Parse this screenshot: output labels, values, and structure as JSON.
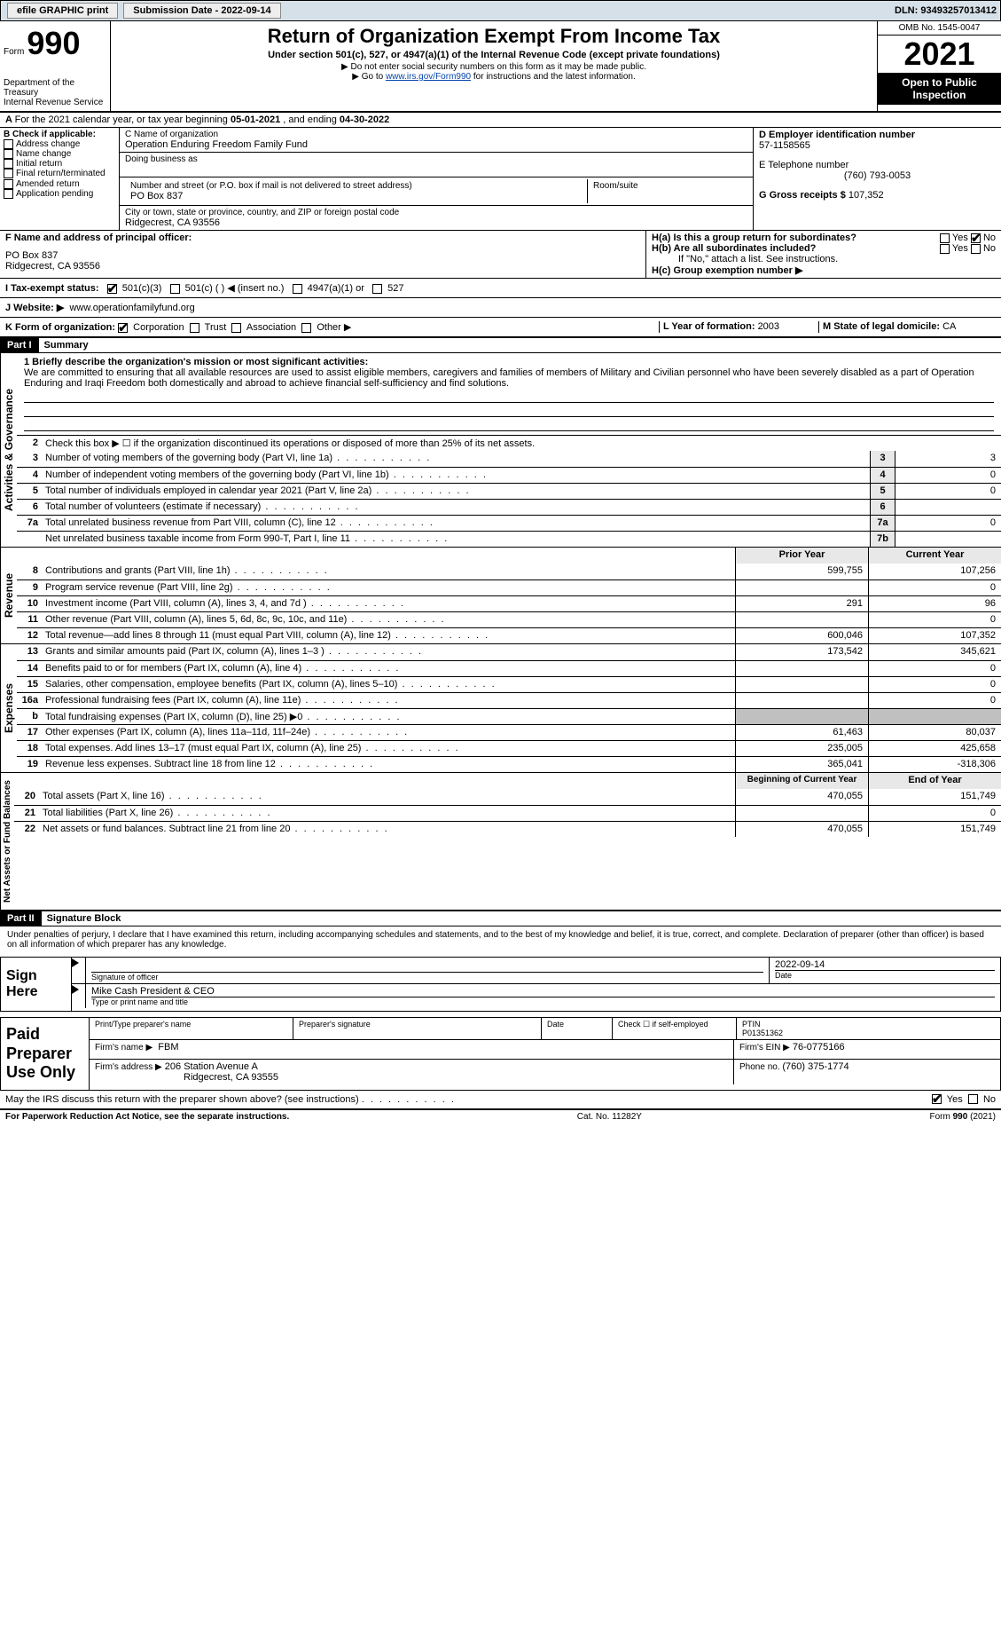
{
  "topbar": {
    "efile": "efile GRAPHIC print",
    "submission_label": "Submission Date - ",
    "submission_date": "2022-09-14",
    "dln_label": "DLN: ",
    "dln": "93493257013412"
  },
  "header": {
    "form_prefix": "Form",
    "form_num": "990",
    "title": "Return of Organization Exempt From Income Tax",
    "subtitle": "Under section 501(c), 527, or 4947(a)(1) of the Internal Revenue Code (except private foundations)",
    "note1": "▶ Do not enter social security numbers on this form as it may be made public.",
    "note2_pre": "▶ Go to ",
    "note2_link": "www.irs.gov/Form990",
    "note2_post": " for instructions and the latest information.",
    "omb": "OMB No. 1545-0047",
    "year": "2021",
    "open_pub": "Open to Public Inspection",
    "dept1": "Department of the Treasury",
    "dept2": "Internal Revenue Service"
  },
  "row_a": {
    "pre": "For the 2021 calendar year, or tax year beginning ",
    "begin": "05-01-2021",
    "mid": " , and ending ",
    "end": "04-30-2022"
  },
  "b": {
    "label": "B Check if applicable:",
    "opts": [
      "Address change",
      "Name change",
      "Initial return",
      "Final return/terminated",
      "Amended return",
      "Application pending"
    ]
  },
  "c": {
    "name_label": "C Name of organization",
    "name": "Operation Enduring Freedom Family Fund",
    "dba_label": "Doing business as",
    "addr_label": "Number and street (or P.O. box if mail is not delivered to street address)",
    "room_label": "Room/suite",
    "addr": "PO Box 837",
    "city_label": "City or town, state or province, country, and ZIP or foreign postal code",
    "city": "Ridgecrest, CA  93556"
  },
  "d": {
    "ein_label": "D Employer identification number",
    "ein": "57-1158565",
    "tel_label": "E Telephone number",
    "tel": "(760) 793-0053",
    "gross_label": "G Gross receipts $",
    "gross": "107,352"
  },
  "f": {
    "label": "F  Name and address of principal officer:",
    "line1": "PO Box 837",
    "line2": "Ridgecrest, CA  93556"
  },
  "h": {
    "a_label": "H(a)  Is this a group return for subordinates?",
    "yes": "Yes",
    "no": "No",
    "b_label": "H(b)  Are all subordinates included?",
    "b_note": "If \"No,\" attach a list. See instructions.",
    "c_label": "H(c)  Group exemption number ▶"
  },
  "i": {
    "label": "I    Tax-exempt status:",
    "opt1": "501(c)(3)",
    "opt2": "501(c) (   ) ◀ (insert no.)",
    "opt3": "4947(a)(1) or",
    "opt4": "527"
  },
  "j": {
    "label": "J   Website: ▶",
    "val": "www.operationfamilyfund.org"
  },
  "k": {
    "label": "K Form of organization:",
    "opts": [
      "Corporation",
      "Trust",
      "Association",
      "Other ▶"
    ]
  },
  "l": {
    "label": "L Year of formation: ",
    "val": "2003"
  },
  "m": {
    "label": "M State of legal domicile: ",
    "val": "CA"
  },
  "part1": {
    "num": "Part I",
    "title": "Summary",
    "q1_label": "1  Briefly describe the organization's mission or most significant activities:",
    "q1_text": "We are committed to ensuring that all available resources are used to assist eligible members, caregivers and families of members of Military and Civilian personnel who have been severely disabled as a part of Operation Enduring and Iraqi Freedom both domestically and abroad to achieve financial self-sufficiency and find solutions.",
    "q2": "Check this box ▶ ☐  if the organization discontinued its operations or disposed of more than 25% of its net assets.",
    "sidetab_gov": "Activities & Governance",
    "sidetab_rev": "Revenue",
    "sidetab_exp": "Expenses",
    "sidetab_net": "Net Assets or Fund Balances",
    "lines_gov": [
      {
        "n": "3",
        "t": "Number of voting members of the governing body (Part VI, line 1a)",
        "box": "3",
        "v": "3"
      },
      {
        "n": "4",
        "t": "Number of independent voting members of the governing body (Part VI, line 1b)",
        "box": "4",
        "v": "0"
      },
      {
        "n": "5",
        "t": "Total number of individuals employed in calendar year 2021 (Part V, line 2a)",
        "box": "5",
        "v": "0"
      },
      {
        "n": "6",
        "t": "Total number of volunteers (estimate if necessary)",
        "box": "6",
        "v": ""
      },
      {
        "n": "7a",
        "t": "Total unrelated business revenue from Part VIII, column (C), line 12",
        "box": "7a",
        "v": "0"
      },
      {
        "n": "",
        "t": "Net unrelated business taxable income from Form 990-T, Part I, line 11",
        "box": "7b",
        "v": ""
      }
    ],
    "hdr_prior": "Prior Year",
    "hdr_curr": "Current Year",
    "lines_rev": [
      {
        "n": "8",
        "t": "Contributions and grants (Part VIII, line 1h)",
        "p": "599,755",
        "c": "107,256"
      },
      {
        "n": "9",
        "t": "Program service revenue (Part VIII, line 2g)",
        "p": "",
        "c": "0"
      },
      {
        "n": "10",
        "t": "Investment income (Part VIII, column (A), lines 3, 4, and 7d )",
        "p": "291",
        "c": "96"
      },
      {
        "n": "11",
        "t": "Other revenue (Part VIII, column (A), lines 5, 6d, 8c, 9c, 10c, and 11e)",
        "p": "",
        "c": "0"
      },
      {
        "n": "12",
        "t": "Total revenue—add lines 8 through 11 (must equal Part VIII, column (A), line 12)",
        "p": "600,046",
        "c": "107,352"
      }
    ],
    "lines_exp": [
      {
        "n": "13",
        "t": "Grants and similar amounts paid (Part IX, column (A), lines 1–3 )",
        "p": "173,542",
        "c": "345,621"
      },
      {
        "n": "14",
        "t": "Benefits paid to or for members (Part IX, column (A), line 4)",
        "p": "",
        "c": "0"
      },
      {
        "n": "15",
        "t": "Salaries, other compensation, employee benefits (Part IX, column (A), lines 5–10)",
        "p": "",
        "c": "0"
      },
      {
        "n": "16a",
        "t": "Professional fundraising fees (Part IX, column (A), line 11e)",
        "p": "",
        "c": "0"
      },
      {
        "n": "b",
        "t": "Total fundraising expenses (Part IX, column (D), line 25) ▶0",
        "p": "GRAY",
        "c": "GRAY"
      },
      {
        "n": "17",
        "t": "Other expenses (Part IX, column (A), lines 11a–11d, 11f–24e)",
        "p": "61,463",
        "c": "80,037"
      },
      {
        "n": "18",
        "t": "Total expenses. Add lines 13–17 (must equal Part IX, column (A), line 25)",
        "p": "235,005",
        "c": "425,658"
      },
      {
        "n": "19",
        "t": "Revenue less expenses. Subtract line 18 from line 12",
        "p": "365,041",
        "c": "-318,306"
      }
    ],
    "hdr_begin": "Beginning of Current Year",
    "hdr_end": "End of Year",
    "lines_net": [
      {
        "n": "20",
        "t": "Total assets (Part X, line 16)",
        "p": "470,055",
        "c": "151,749"
      },
      {
        "n": "21",
        "t": "Total liabilities (Part X, line 26)",
        "p": "",
        "c": "0"
      },
      {
        "n": "22",
        "t": "Net assets or fund balances. Subtract line 21 from line 20",
        "p": "470,055",
        "c": "151,749"
      }
    ]
  },
  "part2": {
    "num": "Part II",
    "title": "Signature Block",
    "decl": "Under penalties of perjury, I declare that I have examined this return, including accompanying schedules and statements, and to the best of my knowledge and belief, it is true, correct, and complete. Declaration of preparer (other than officer) is based on all information of which preparer has any knowledge.",
    "sign_here": "Sign Here",
    "sig_officer": "Signature of officer",
    "date_label": "Date",
    "sig_date": "2022-09-14",
    "name_title": "Mike Cash  President & CEO",
    "name_label": "Type or print name and title",
    "paid_label": "Paid Preparer Use Only",
    "prep_name_label": "Print/Type preparer's name",
    "prep_sig_label": "Preparer's signature",
    "check_self": "Check ☐ if self-employed",
    "ptin_label": "PTIN",
    "ptin": "P01351362",
    "firm_name_label": "Firm's name    ▶",
    "firm_name": "FBM",
    "firm_ein_label": "Firm's EIN ▶",
    "firm_ein": "76-0775166",
    "firm_addr_label": "Firm's address ▶",
    "firm_addr1": "206 Station Avenue A",
    "firm_addr2": "Ridgecrest, CA  93555",
    "phone_label": "Phone no. ",
    "phone": "(760) 375-1774",
    "discuss": "May the IRS discuss this return with the preparer shown above? (see instructions)"
  },
  "footer": {
    "left": "For Paperwork Reduction Act Notice, see the separate instructions.",
    "mid": "Cat. No. 11282Y",
    "right": "Form 990 (2021)"
  },
  "colors": {
    "topbar_bg": "#d6e0e8",
    "link": "#0645ad",
    "gray_cell": "#c0c0c0",
    "header_cell": "#e8e8e8"
  }
}
